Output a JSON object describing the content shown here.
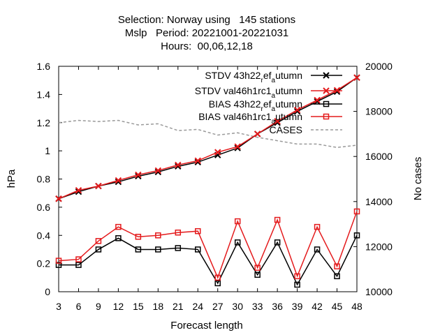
{
  "chart_data": {
    "type": "line",
    "title_lines": [
      "Selection: Norway using   145 stations",
      "Mslp   Period: 20221001-20221031",
      "Hours:  00,06,12,18"
    ],
    "xlabel": "Forecast length",
    "ylabel": "hPa",
    "y2label": "No cases",
    "x": [
      3,
      6,
      9,
      12,
      15,
      18,
      21,
      24,
      27,
      30,
      33,
      36,
      39,
      42,
      45,
      48
    ],
    "x_ticks": [
      "3",
      "6",
      "9",
      "12",
      "15",
      "18",
      "21",
      "24",
      "27",
      "30",
      "33",
      "36",
      "39",
      "42",
      "45",
      "48"
    ],
    "xlim": [
      3,
      48
    ],
    "ylim": [
      0,
      1.6
    ],
    "y_ticks": [
      "0",
      "0.2",
      "0.4",
      "0.6",
      "0.8",
      "1",
      "1.2",
      "1.4",
      "1.6"
    ],
    "y2lim": [
      10000,
      20000
    ],
    "y2_ticks": [
      "10000",
      "12000",
      "14000",
      "16000",
      "18000",
      "20000"
    ],
    "grid": false,
    "legend_placement": "top-right",
    "series": [
      {
        "name": "STDV 43h22_ref_autumn",
        "legend_parts": [
          "STDV 43h22",
          "r",
          "ef",
          "a",
          "utumn"
        ],
        "color": "#000000",
        "marker": "x",
        "axis": "left",
        "values": [
          0.66,
          0.71,
          0.75,
          0.78,
          0.82,
          0.85,
          0.89,
          0.92,
          0.97,
          1.02,
          1.12,
          1.2,
          1.28,
          1.35,
          1.42,
          1.52
        ]
      },
      {
        "name": "STDV val46h1rc1_autumn",
        "legend_parts": [
          "STDV val46h1rc1",
          "a",
          "utumn"
        ],
        "color": "#e41a1c",
        "marker": "x",
        "axis": "left",
        "values": [
          0.66,
          0.72,
          0.75,
          0.79,
          0.83,
          0.86,
          0.9,
          0.93,
          0.99,
          1.03,
          1.12,
          1.21,
          1.29,
          1.36,
          1.43,
          1.52
        ]
      },
      {
        "name": "BIAS 43h22_ref_autumn",
        "legend_parts": [
          "BIAS 43h22",
          "r",
          "ef",
          "a",
          "utumn"
        ],
        "color": "#000000",
        "marker": "square",
        "axis": "left",
        "values": [
          0.19,
          0.19,
          0.3,
          0.38,
          0.3,
          0.3,
          0.31,
          0.3,
          0.06,
          0.35,
          0.12,
          0.35,
          0.05,
          0.3,
          0.11,
          0.4
        ]
      },
      {
        "name": "BIAS val46h1rc1_autumn",
        "legend_parts": [
          "BIAS val46h1rc1",
          "a",
          "utumn"
        ],
        "color": "#e41a1c",
        "marker": "square",
        "axis": "left",
        "values": [
          0.22,
          0.23,
          0.36,
          0.46,
          0.39,
          0.4,
          0.42,
          0.43,
          0.1,
          0.5,
          0.17,
          0.51,
          0.11,
          0.46,
          0.18,
          0.57
        ]
      },
      {
        "name": "CASES",
        "legend_parts": [
          "CASES"
        ],
        "color": "#999999",
        "marker": "none",
        "dashed": true,
        "axis": "right",
        "values": [
          17500,
          17600,
          17550,
          17600,
          17400,
          17450,
          17150,
          17200,
          16950,
          17050,
          16850,
          16700,
          16550,
          16550,
          16400,
          16500
        ]
      }
    ]
  }
}
